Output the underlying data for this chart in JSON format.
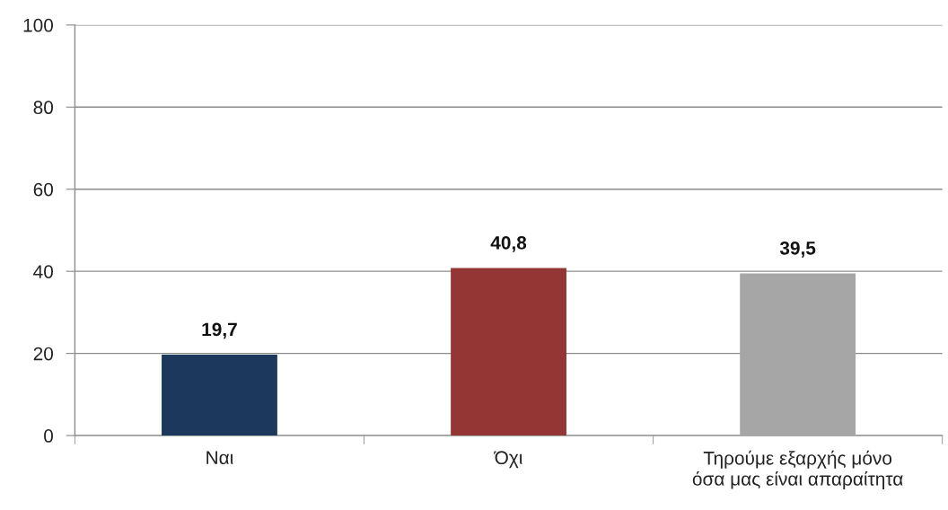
{
  "chart_data": {
    "type": "bar",
    "categories": [
      "Ναι",
      "Όχι",
      "Τηρούμε εξαρχής μόνο\nόσα μας είναι απαραίτητα"
    ],
    "values": [
      19.7,
      40.8,
      39.5
    ],
    "colors": [
      "#1c385c",
      "#943634",
      "#a6a6a6"
    ],
    "value_labels": [
      "19,7",
      "40,8",
      "39,5"
    ],
    "ylim": [
      0,
      100
    ],
    "yticks": [
      0,
      20,
      40,
      60,
      80,
      100
    ],
    "grid": "y",
    "legend": false
  }
}
